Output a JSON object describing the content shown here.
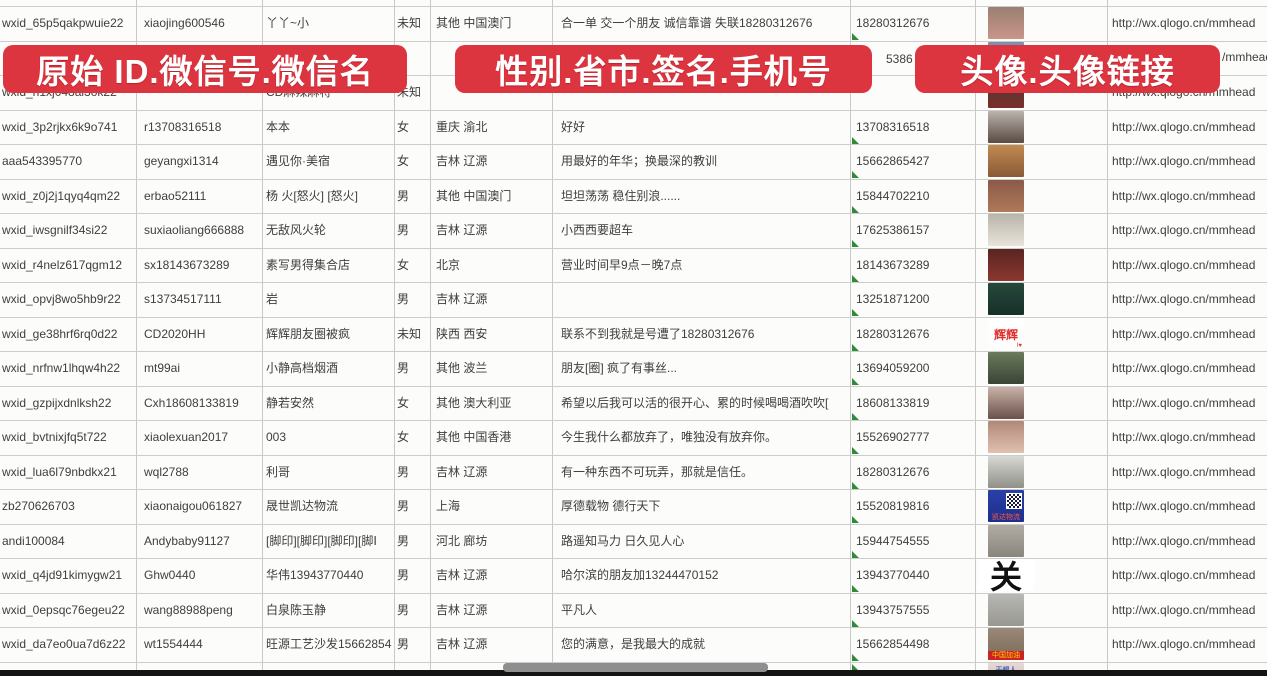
{
  "overlays": {
    "banner1": "原始 ID.微信号.微信名",
    "banner2": "性别.省市.签名.手机号",
    "banner3": "头像.头像链接"
  },
  "colors": {
    "banner_red": "#dc3540",
    "banner_text": "#ffffff",
    "grid": "#c9c9c7",
    "text": "#3e3e3e",
    "marker_green": "#2f8a3a",
    "scrollbar_track": "#141414",
    "scrollbar_thumb": "#8f8f8f",
    "sheet_bg": "#fcfcfb"
  },
  "url_common": "http://wx.qlogo.cn/mmhead",
  "rows": [
    {
      "wxid": "wxid_65p5qakpwuie22",
      "wechat_no": "xiaojing600546",
      "name": "丫丫~小",
      "gender": "未知",
      "region": "其他 中国澳门",
      "signature": "合一单 交一个朋友 诚信靠谱 失联18280312676",
      "phone": "18280312676",
      "url": "http://wx.qlogo.cn/mmhead",
      "avatar": {
        "bg": [
          "#9a7f72",
          "#c9958a"
        ]
      }
    },
    {
      "hidden_by_banner": true,
      "phone_fragment": "5386",
      "url_fragment": "/mmhead",
      "avatar": {
        "bg": [
          "#7a8fae",
          "#a8bcd4"
        ]
      }
    },
    {
      "wxid": "wxid_h1xj048al3ok22",
      "wechat_no": "",
      "name": "CD麻辣麻将",
      "gender": "未知",
      "region": "",
      "signature": "",
      "phone": "",
      "url": "http://wx.qlogo.cn/mmhead",
      "sig_marker": true,
      "avatar": {
        "bg": [
          "#4a3a38",
          "#7a2f2a"
        ]
      }
    },
    {
      "wxid": "wxid_3p2rjkx6k9o741",
      "wechat_no": "r13708316518",
      "name": "本本",
      "gender": "女",
      "region": "重庆 渝北",
      "signature": "好好",
      "phone": "13708316518",
      "url": "http://wx.qlogo.cn/mmhead",
      "avatar": {
        "bg": [
          "#b9b4ac",
          "#5a4a42"
        ]
      }
    },
    {
      "wxid": "aaa543395770",
      "wechat_no": "geyangxi1314",
      "name": "遇见你·美宿",
      "gender": "女",
      "region": "吉林 辽源",
      "signature": "用最好的年华；换最深的教训",
      "phone": "15662865427",
      "url": "http://wx.qlogo.cn/mmhead",
      "avatar": {
        "bg": [
          "#c08a50",
          "#8a5a38"
        ]
      }
    },
    {
      "wxid": "wxid_z0j2j1qyq4qm22",
      "wechat_no": "erbao52111",
      "name": "杨 火[怒火] [怒火]",
      "gender": "男",
      "region": "其他 中国澳门",
      "signature": "坦坦荡荡 稳住别浪......",
      "phone": "15844702210",
      "url": "http://wx.qlogo.cn/mmhead",
      "avatar": {
        "bg": [
          "#8a5a4a",
          "#b07858"
        ]
      }
    },
    {
      "wxid": "wxid_iwsgnilf34si22",
      "wechat_no": "suxiaoliang666888",
      "name": "无敌风火轮",
      "gender": "男",
      "region": "吉林 辽源",
      "signature": "小西西要超车",
      "phone": "17625386157",
      "url": "http://wx.qlogo.cn/mmhead",
      "avatar": {
        "bg": [
          "#b8b4aa",
          "#e8e4da"
        ]
      }
    },
    {
      "wxid": "wxid_r4nelz617qgm12",
      "wechat_no": "sx18143673289",
      "name": "素写男得集合店",
      "gender": "女",
      "region": "北京",
      "signature": "营业时间早9点－晚7点",
      "phone": "18143673289",
      "url": "http://wx.qlogo.cn/mmhead",
      "avatar": {
        "bg": [
          "#5a2420",
          "#8a3830"
        ]
      }
    },
    {
      "wxid": "wxid_opvj8wo5hb9r22",
      "wechat_no": "s13734517111",
      "name": "岩",
      "gender": "男",
      "region": "吉林 辽源",
      "signature": "",
      "phone": "13251871200",
      "url": "http://wx.qlogo.cn/mmhead",
      "avatar": {
        "bg": [
          "#27483a",
          "#16302a"
        ]
      }
    },
    {
      "wxid": "wxid_ge38hrf6rq0d22",
      "wechat_no": "CD2020HH",
      "name": "辉辉朋友圈被疯",
      "gender": "未知",
      "region": "陕西 西安",
      "signature": "联系不到我就是号遭了18280312676",
      "phone": "18280312676",
      "url": "http://wx.qlogo.cn/mmhead",
      "avatar": {
        "bg": [
          "#ffffff",
          "#fdfdfd"
        ],
        "label": "辉辉",
        "label_color": "#e03030",
        "label_size": 12,
        "sub": "I♥",
        "sub_color": "#e03030"
      }
    },
    {
      "wxid": "wxid_nrfnw1lhqw4h22",
      "wechat_no": "mt99ai",
      "name": "小静高档烟酒",
      "gender": "男",
      "region": "其他 波兰",
      "signature": "朋友[圈] 疯了有事丝...",
      "phone": "13694059200",
      "url": "http://wx.qlogo.cn/mmhead",
      "avatar": {
        "bg": [
          "#6a7a5a",
          "#3a4438"
        ]
      }
    },
    {
      "wxid": "wxid_gzpijxdnlksh22",
      "wechat_no": "Cxh18608133819",
      "name": "静若安然",
      "gender": "女",
      "region": "其他 澳大利亚",
      "signature": "希望以后我可以活的很开心、累的时候喝喝酒吹吹[",
      "phone": "18608133819",
      "url": "http://wx.qlogo.cn/mmhead",
      "avatar": {
        "bg": [
          "#c9b2a8",
          "#6a5048"
        ]
      }
    },
    {
      "wxid": "wxid_bvtnixjfq5t722",
      "wechat_no": "xiaolexuan2017",
      "name": "003",
      "gender": "女",
      "region": "其他 中国香港",
      "signature": "今生我什么都放弃了，唯独没有放弃你。",
      "phone": "15526902777",
      "url": "http://wx.qlogo.cn/mmhead",
      "avatar": {
        "bg": [
          "#b08878",
          "#e0c0b0"
        ]
      }
    },
    {
      "wxid": "wxid_lua6l79nbdkx21",
      "wechat_no": "wql2788",
      "name": "利哥",
      "gender": "男",
      "region": "吉林 辽源",
      "signature": "有一种东西不可玩弄，那就是信任。",
      "phone": "18280312676",
      "url": "http://wx.qlogo.cn/mmhead",
      "avatar": {
        "bg": [
          "#d8d8d4",
          "#909088"
        ]
      }
    },
    {
      "wxid": "zb270626703",
      "wechat_no": "xiaonaigou061827",
      "name": "晟世凯达物流",
      "gender": "男",
      "region": "上海",
      "signature": "厚德载物 德行天下",
      "phone": "15520819816",
      "url": "http://wx.qlogo.cn/mmhead",
      "avatar": {
        "bg": [
          "#2a3fa8",
          "#1e2f8a"
        ],
        "qr": true,
        "strip_text": "凯达物流",
        "strip_text_color": "#ff5a4a",
        "strip_bg": "transparent"
      }
    },
    {
      "wxid": "andi100084",
      "wechat_no": "Andybaby91127",
      "name": "[脚印][脚印][脚印][脚Ⅰ",
      "gender": "男",
      "region": "河北 廊坊",
      "signature": "路遥知马力 日久见人心",
      "phone": "15944754555",
      "url": "http://wx.qlogo.cn/mmhead",
      "avatar": {
        "bg": [
          "#b0aca4",
          "#8a867e"
        ]
      }
    },
    {
      "wxid": "wxid_q4jd91kimygw21",
      "wechat_no": "Ghw0440",
      "name": "华伟13943770440",
      "gender": "男",
      "region": "吉林 辽源",
      "signature": "哈尔滨的朋友加13244470152",
      "phone": "13943770440",
      "url": "http://wx.qlogo.cn/mmhead",
      "avatar": {
        "bg": [
          "#ffffff",
          "#ffffff"
        ],
        "label": "关",
        "label_color": "#111111",
        "label_size": 32,
        "big": true
      }
    },
    {
      "wxid": "wxid_0epsqc76egeu22",
      "wechat_no": "wang88988peng",
      "name": "白泉陈玉静",
      "gender": "男",
      "region": "吉林 辽源",
      "signature": "平凡人",
      "phone": "13943757555",
      "url": "http://wx.qlogo.cn/mmhead",
      "avatar": {
        "bg": [
          "#b8b8b4",
          "#989890"
        ]
      }
    },
    {
      "wxid": "wxid_da7eo0ua7d6z22",
      "wechat_no": "wt1554444",
      "name": "旺源工艺沙发15662854",
      "gender": "男",
      "region": "吉林 辽源",
      "signature": "您的满意，是我最大的成就",
      "phone": "15662854498",
      "url": "http://wx.qlogo.cn/mmhead",
      "avatar": {
        "bg": [
          "#9a8878",
          "#7a6a5a"
        ],
        "strip_text": "中国加油",
        "strip_text_color": "#ffd700",
        "strip_bg": "#cc2222"
      }
    },
    {
      "partial": true,
      "avatar": {
        "bg": [
          "#e8d8d4",
          "#dcc8c4"
        ],
        "label": "天蝎人",
        "label_color": "#4a6ab8",
        "label_size": 7
      }
    }
  ]
}
